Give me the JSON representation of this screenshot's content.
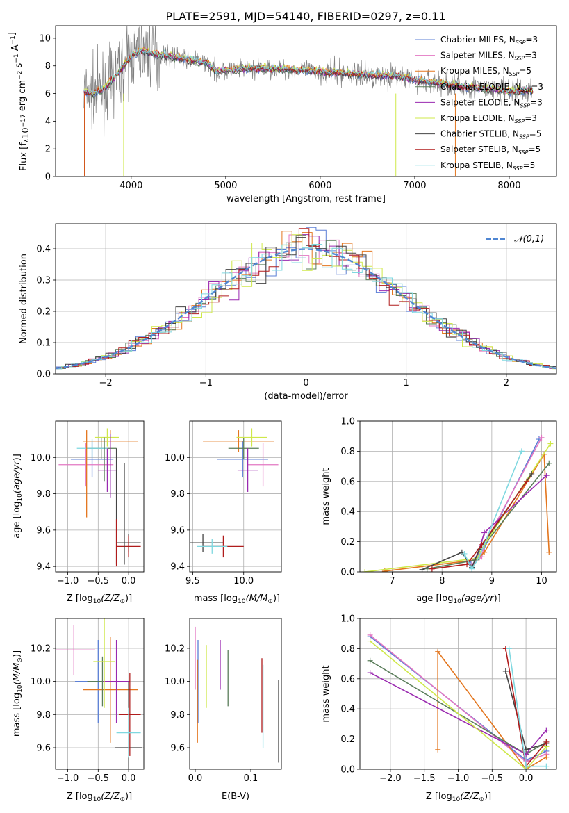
{
  "figure": {
    "title": "PLATE=2591, MJD=54140, FIBERID=0297, z=0.11",
    "colors": {
      "Chabrier MILES": "#5b7fd6",
      "Salpeter MILES": "#e377c2",
      "Kroupa MILES": "#e3761e",
      "Chabrier ELODIE": "#5a7d5a",
      "Salpeter ELODIE": "#9a2ab0",
      "Kroupa ELODIE": "#cfe84a",
      "Chabrier STELIB": "#444444",
      "Salpeter STELIB": "#b01c1c",
      "Kroupa STELIB": "#7fd8e0",
      "data": "#808080",
      "normal": "#4f86d2"
    }
  },
  "chart_data": [
    {
      "id": "spectrum",
      "type": "line",
      "xlabel": "wavelength [Angstrom, rest frame]",
      "ylabel": "Flux [f_λ10^-17 erg cm^-2 s^-1 A^-1]",
      "xlim": [
        3200,
        8500
      ],
      "ylim": [
        0,
        10.9
      ],
      "xticks": [
        4000,
        5000,
        6000,
        7000,
        8000
      ],
      "yticks": [
        0,
        2,
        4,
        6,
        8,
        10
      ],
      "legend": "upper-right",
      "series_names": [
        "Chabrier MILES",
        "Salpeter MILES",
        "Kroupa MILES",
        "Chabrier ELODIE",
        "Salpeter ELODIE",
        "Kroupa ELODIE",
        "Chabrier STELIB",
        "Salpeter STELIB",
        "Kroupa STELIB"
      ],
      "n_ssp": [
        3,
        3,
        5,
        3,
        3,
        3,
        5,
        5,
        5
      ],
      "continuum": {
        "x": [
          3500,
          3600,
          3700,
          3800,
          3900,
          4000,
          4100,
          4300,
          4500,
          4800,
          4900,
          5200,
          5500,
          5800,
          6100,
          6400,
          6600,
          6800,
          7000,
          7200,
          7500,
          7800,
          8000,
          8250
        ],
        "y": [
          6.1,
          6.0,
          6.3,
          7.0,
          7.8,
          8.7,
          9.1,
          8.8,
          8.6,
          8.2,
          7.6,
          7.8,
          7.8,
          7.7,
          7.5,
          7.4,
          7.3,
          7.3,
          7.0,
          6.8,
          6.5,
          6.3,
          6.2,
          6.2
        ]
      }
    },
    {
      "id": "residuals",
      "type": "line",
      "xlabel": "(data-model)/error",
      "ylabel": "Normed distribution",
      "xlim": [
        -2.5,
        2.5
      ],
      "ylim": [
        0,
        0.48
      ],
      "xticks": [
        -2,
        -1,
        0,
        1,
        2
      ],
      "yticks": [
        0.0,
        0.1,
        0.2,
        0.3,
        0.4
      ],
      "grid": true,
      "legend": "upper-right",
      "reference_curve": {
        "name": "N(0,1)",
        "mean": 0,
        "sigma": 1
      }
    },
    {
      "id": "age-vs-Z",
      "type": "scatter",
      "xlabel": "Z [log10(Z/Z⊙)]",
      "ylabel": "age  [log10(age/yr)]",
      "xlim": [
        -1.2,
        0.25
      ],
      "ylim": [
        9.37,
        10.2
      ],
      "xticks": [
        -1.0,
        -0.5,
        0.0
      ],
      "yticks": [
        9.4,
        9.6,
        9.8,
        10.0
      ],
      "grid": true,
      "points": [
        {
          "model": "Chabrier MILES",
          "x": -0.6,
          "xerr": 0.35,
          "y": 9.99,
          "yerr": 0.1
        },
        {
          "model": "Salpeter MILES",
          "x": -0.7,
          "xerr": 0.45,
          "y": 9.96,
          "yerr": 0.12
        },
        {
          "model": "Kroupa MILES",
          "x": -0.3,
          "xerr": 0.45,
          "y": 10.09,
          "yerr": 0.06
        },
        {
          "model": "Chabrier ELODIE",
          "x": -0.45,
          "xerr": 0.25,
          "y": 10.05,
          "yerr": 0.06
        },
        {
          "model": "Salpeter ELODIE",
          "x": -0.35,
          "xerr": 0.15,
          "y": 9.93,
          "yerr": 0.12
        },
        {
          "model": "Kroupa ELODIE",
          "x": -0.35,
          "xerr": 0.2,
          "y": 10.11,
          "yerr": 0.05
        },
        {
          "model": "Chabrier STELIB",
          "x": 0.0,
          "xerr": 0.2,
          "y": 9.53,
          "yerr": 0.05
        },
        {
          "model": "Salpeter STELIB",
          "x": 0.0,
          "xerr": 0.2,
          "y": 9.51,
          "yerr": 0.06
        },
        {
          "model": "Kroupa STELIB",
          "x": -0.6,
          "xerr": 0.25,
          "y": 10.05,
          "yerr": 0.05
        }
      ],
      "extra_vertical_bars": [
        {
          "model": "Kroupa MILES",
          "x": -0.69,
          "y0": 9.67,
          "y1": 10.15
        },
        {
          "model": "Chabrier STELIB",
          "x": -0.2,
          "y0": 9.41,
          "y1": 10.05
        },
        {
          "model": "Chabrier STELIB",
          "x": -0.07,
          "y0": 9.41,
          "y1": 9.97
        },
        {
          "model": "Salpeter STELIB",
          "x": -0.2,
          "y0": 9.4,
          "y1": 9.66
        },
        {
          "model": "Salpeter ELODIE",
          "x": -0.3,
          "y0": 9.78,
          "y1": 10.13
        },
        {
          "model": "Chabrier ELODIE",
          "x": -0.4,
          "y0": 9.87,
          "y1": 10.11
        }
      ]
    },
    {
      "id": "age-vs-mass",
      "type": "scatter",
      "xlabel": "mass [log10(M/M⊙)]",
      "xlim": [
        9.47,
        10.37
      ],
      "ylim": [
        9.37,
        10.2
      ],
      "xticks": [
        9.5,
        10.0
      ],
      "yticks": [
        9.4,
        9.6,
        9.8,
        10.0
      ],
      "grid": true,
      "points": [
        {
          "model": "Chabrier MILES",
          "x": 9.99,
          "xerr": 0.25,
          "y": 9.99,
          "yerr": 0.1
        },
        {
          "model": "Salpeter MILES",
          "x": 10.19,
          "xerr": 0.15,
          "y": 9.96,
          "yerr": 0.12
        },
        {
          "model": "Kroupa MILES",
          "x": 9.95,
          "xerr": 0.35,
          "y": 10.09,
          "yerr": 0.06
        },
        {
          "model": "Chabrier ELODIE",
          "x": 10.0,
          "xerr": 0.15,
          "y": 10.05,
          "yerr": 0.06
        },
        {
          "model": "Salpeter ELODIE",
          "x": 10.04,
          "xerr": 0.1,
          "y": 9.93,
          "yerr": 0.12
        },
        {
          "model": "Kroupa ELODIE",
          "x": 10.08,
          "xerr": 0.15,
          "y": 10.11,
          "yerr": 0.05
        },
        {
          "model": "Chabrier STELIB",
          "x": 9.6,
          "xerr": 0.2,
          "y": 9.53,
          "yerr": 0.05
        },
        {
          "model": "Salpeter STELIB",
          "x": 9.8,
          "xerr": 0.2,
          "y": 9.51,
          "yerr": 0.06
        },
        {
          "model": "Kroupa STELIB",
          "x": 9.69,
          "xerr": 0.15,
          "y": 9.51,
          "yerr": 0.04
        }
      ]
    },
    {
      "id": "mass-weight-vs-age",
      "type": "line",
      "xlabel": "age  [log10(age/yr)]",
      "ylabel": "mass weight",
      "xlim": [
        6.35,
        10.3
      ],
      "ylim": [
        0,
        1.0
      ],
      "xticks": [
        7,
        8,
        9,
        10
      ],
      "yticks": [
        0.0,
        0.2,
        0.4,
        0.6,
        0.8,
        1.0
      ],
      "grid": true,
      "series": [
        {
          "name": "Chabrier MILES",
          "x": [
            8.55,
            8.75,
            8.85,
            9.95
          ],
          "y": [
            0.06,
            0.12,
            0.16,
            0.88
          ]
        },
        {
          "name": "Salpeter MILES",
          "x": [
            8.6,
            8.8,
            8.85,
            10.0
          ],
          "y": [
            0.05,
            0.1,
            0.18,
            0.89
          ]
        },
        {
          "name": "Kroupa MILES",
          "x": [
            6.85,
            8.7,
            8.85,
            10.05,
            10.15
          ],
          "y": [
            0.005,
            0.08,
            0.13,
            0.78,
            0.13
          ]
        },
        {
          "name": "Chabrier ELODIE",
          "x": [
            7.7,
            8.7,
            8.85,
            10.15
          ],
          "y": [
            0.02,
            0.08,
            0.18,
            0.72
          ]
        },
        {
          "name": "Salpeter ELODIE",
          "x": [
            8.7,
            8.85,
            10.1
          ],
          "y": [
            0.1,
            0.26,
            0.64
          ]
        },
        {
          "name": "Kroupa ELODIE",
          "x": [
            6.45,
            8.7,
            8.85,
            10.18
          ],
          "y": [
            0.0,
            0.09,
            0.18,
            0.85
          ]
        },
        {
          "name": "Chabrier STELIB",
          "x": [
            7.6,
            8.4,
            8.6,
            8.75,
            9.8
          ],
          "y": [
            0.015,
            0.13,
            0.03,
            0.15,
            0.65
          ]
        },
        {
          "name": "Salpeter STELIB",
          "x": [
            7.8,
            8.5,
            8.8,
            9.7
          ],
          "y": [
            0.02,
            0.05,
            0.18,
            0.6
          ]
        },
        {
          "name": "Kroupa STELIB",
          "x": [
            8.45,
            8.6,
            8.75,
            9.6
          ],
          "y": [
            0.12,
            0.02,
            0.1,
            0.8
          ]
        }
      ]
    },
    {
      "id": "mass-vs-Z",
      "type": "scatter",
      "xlabel": "Z [log10(Z/Z⊙)]",
      "ylabel": "mass [log10(M/M⊙)]",
      "xlim": [
        -1.2,
        0.25
      ],
      "ylim": [
        9.47,
        10.38
      ],
      "xticks": [
        -1.0,
        -0.5,
        0.0
      ],
      "yticks": [
        9.6,
        9.8,
        10.0,
        10.2
      ],
      "grid": true,
      "points": [
        {
          "model": "Chabrier MILES",
          "x": -0.5,
          "xerr": 0.38,
          "y": 10.0,
          "yerr": 0.25
        },
        {
          "model": "Salpeter MILES",
          "x": -0.9,
          "xerr": 0.35,
          "y": 10.19,
          "yerr": 0.15
        },
        {
          "model": "Kroupa MILES",
          "x": -0.3,
          "xerr": 0.45,
          "y": 9.95,
          "yerr": 0.32
        },
        {
          "model": "Chabrier ELODIE",
          "x": -0.43,
          "xerr": 0.25,
          "y": 10.0,
          "yerr": 0.15
        },
        {
          "model": "Salpeter ELODIE",
          "x": -0.2,
          "xerr": 0.22,
          "y": 10.0,
          "yerr": 0.25
        },
        {
          "model": "Kroupa ELODIE",
          "x": -0.4,
          "xerr": 0.18,
          "y": 10.12,
          "yerr": 0.28
        },
        {
          "model": "Chabrier STELIB",
          "x": 0.0,
          "xerr": 0.22,
          "y": 9.6,
          "yerr": 0.4
        },
        {
          "model": "Salpeter STELIB",
          "x": 0.02,
          "xerr": 0.18,
          "y": 9.8,
          "yerr": 0.25
        },
        {
          "model": "Kroupa STELIB",
          "x": 0.0,
          "xerr": 0.2,
          "y": 9.69,
          "yerr": 0.15
        }
      ]
    },
    {
      "id": "mass-vs-EBV",
      "type": "scatter",
      "xlabel": "E(B-V)",
      "xlim": [
        -0.01,
        0.155
      ],
      "ylim": [
        9.47,
        10.38
      ],
      "xticks": [
        0.0,
        0.1
      ],
      "yticks": [
        9.6,
        9.8,
        10.0,
        10.2
      ],
      "bars": [
        {
          "model": "Salpeter MILES",
          "x": 0.0,
          "y0": 9.95,
          "y1": 10.33
        },
        {
          "model": "Chabrier MILES",
          "x": 0.005,
          "y0": 9.75,
          "y1": 10.25
        },
        {
          "model": "Kroupa MILES",
          "x": 0.004,
          "y0": 9.63,
          "y1": 10.13
        },
        {
          "model": "Kroupa ELODIE",
          "x": 0.02,
          "y0": 9.84,
          "y1": 10.22
        },
        {
          "model": "Salpeter ELODIE",
          "x": 0.045,
          "y0": 9.95,
          "y1": 10.25
        },
        {
          "model": "Chabrier ELODIE",
          "x": 0.059,
          "y0": 9.85,
          "y1": 10.19
        },
        {
          "model": "Salpeter STELIB",
          "x": 0.12,
          "y0": 9.69,
          "y1": 10.14
        },
        {
          "model": "Kroupa STELIB",
          "x": 0.122,
          "y0": 9.6,
          "y1": 10.1
        },
        {
          "model": "Chabrier STELIB",
          "x": 0.15,
          "y0": 9.51,
          "y1": 10.01
        }
      ]
    },
    {
      "id": "mass-weight-vs-Z",
      "type": "line",
      "xlabel": "Z [log10(Z/Z⊙)]",
      "ylabel": "mass weight",
      "xlim": [
        -2.45,
        0.45
      ],
      "ylim": [
        0,
        1.0
      ],
      "xticks": [
        -2.0,
        -1.5,
        -1.0,
        -0.5,
        0.0
      ],
      "yticks": [
        0.0,
        0.2,
        0.4,
        0.6,
        0.8,
        1.0
      ],
      "grid": true,
      "series": [
        {
          "name": "Chabrier MILES",
          "x": [
            -2.3,
            0.0,
            0.3
          ],
          "y": [
            0.88,
            0.06,
            0.12
          ]
        },
        {
          "name": "Salpeter MILES",
          "x": [
            -2.3,
            0.0,
            0.3
          ],
          "y": [
            0.89,
            0.05,
            0.1
          ]
        },
        {
          "name": "Kroupa MILES",
          "x": [
            -1.3,
            -1.3,
            0.0,
            0.3
          ],
          "y": [
            0.13,
            0.78,
            0.0,
            0.08
          ]
        },
        {
          "name": "Chabrier ELODIE",
          "x": [
            -2.3,
            0.0,
            0.3
          ],
          "y": [
            0.72,
            0.1,
            0.18
          ]
        },
        {
          "name": "Salpeter ELODIE",
          "x": [
            -2.3,
            0.0,
            0.3
          ],
          "y": [
            0.64,
            0.1,
            0.26
          ]
        },
        {
          "name": "Kroupa ELODIE",
          "x": [
            -2.3,
            0.0,
            0.3
          ],
          "y": [
            0.85,
            0.0,
            0.15
          ]
        },
        {
          "name": "Chabrier STELIB",
          "x": [
            -0.3,
            0.0,
            0.3
          ],
          "y": [
            0.65,
            0.13,
            0.17
          ]
        },
        {
          "name": "Salpeter STELIB",
          "x": [
            -0.3,
            0.0,
            0.3
          ],
          "y": [
            0.8,
            0.02,
            0.18
          ]
        },
        {
          "name": "Kroupa STELIB",
          "x": [
            -0.25,
            0.0,
            0.3
          ],
          "y": [
            0.8,
            0.02,
            0.02
          ]
        }
      ]
    }
  ]
}
